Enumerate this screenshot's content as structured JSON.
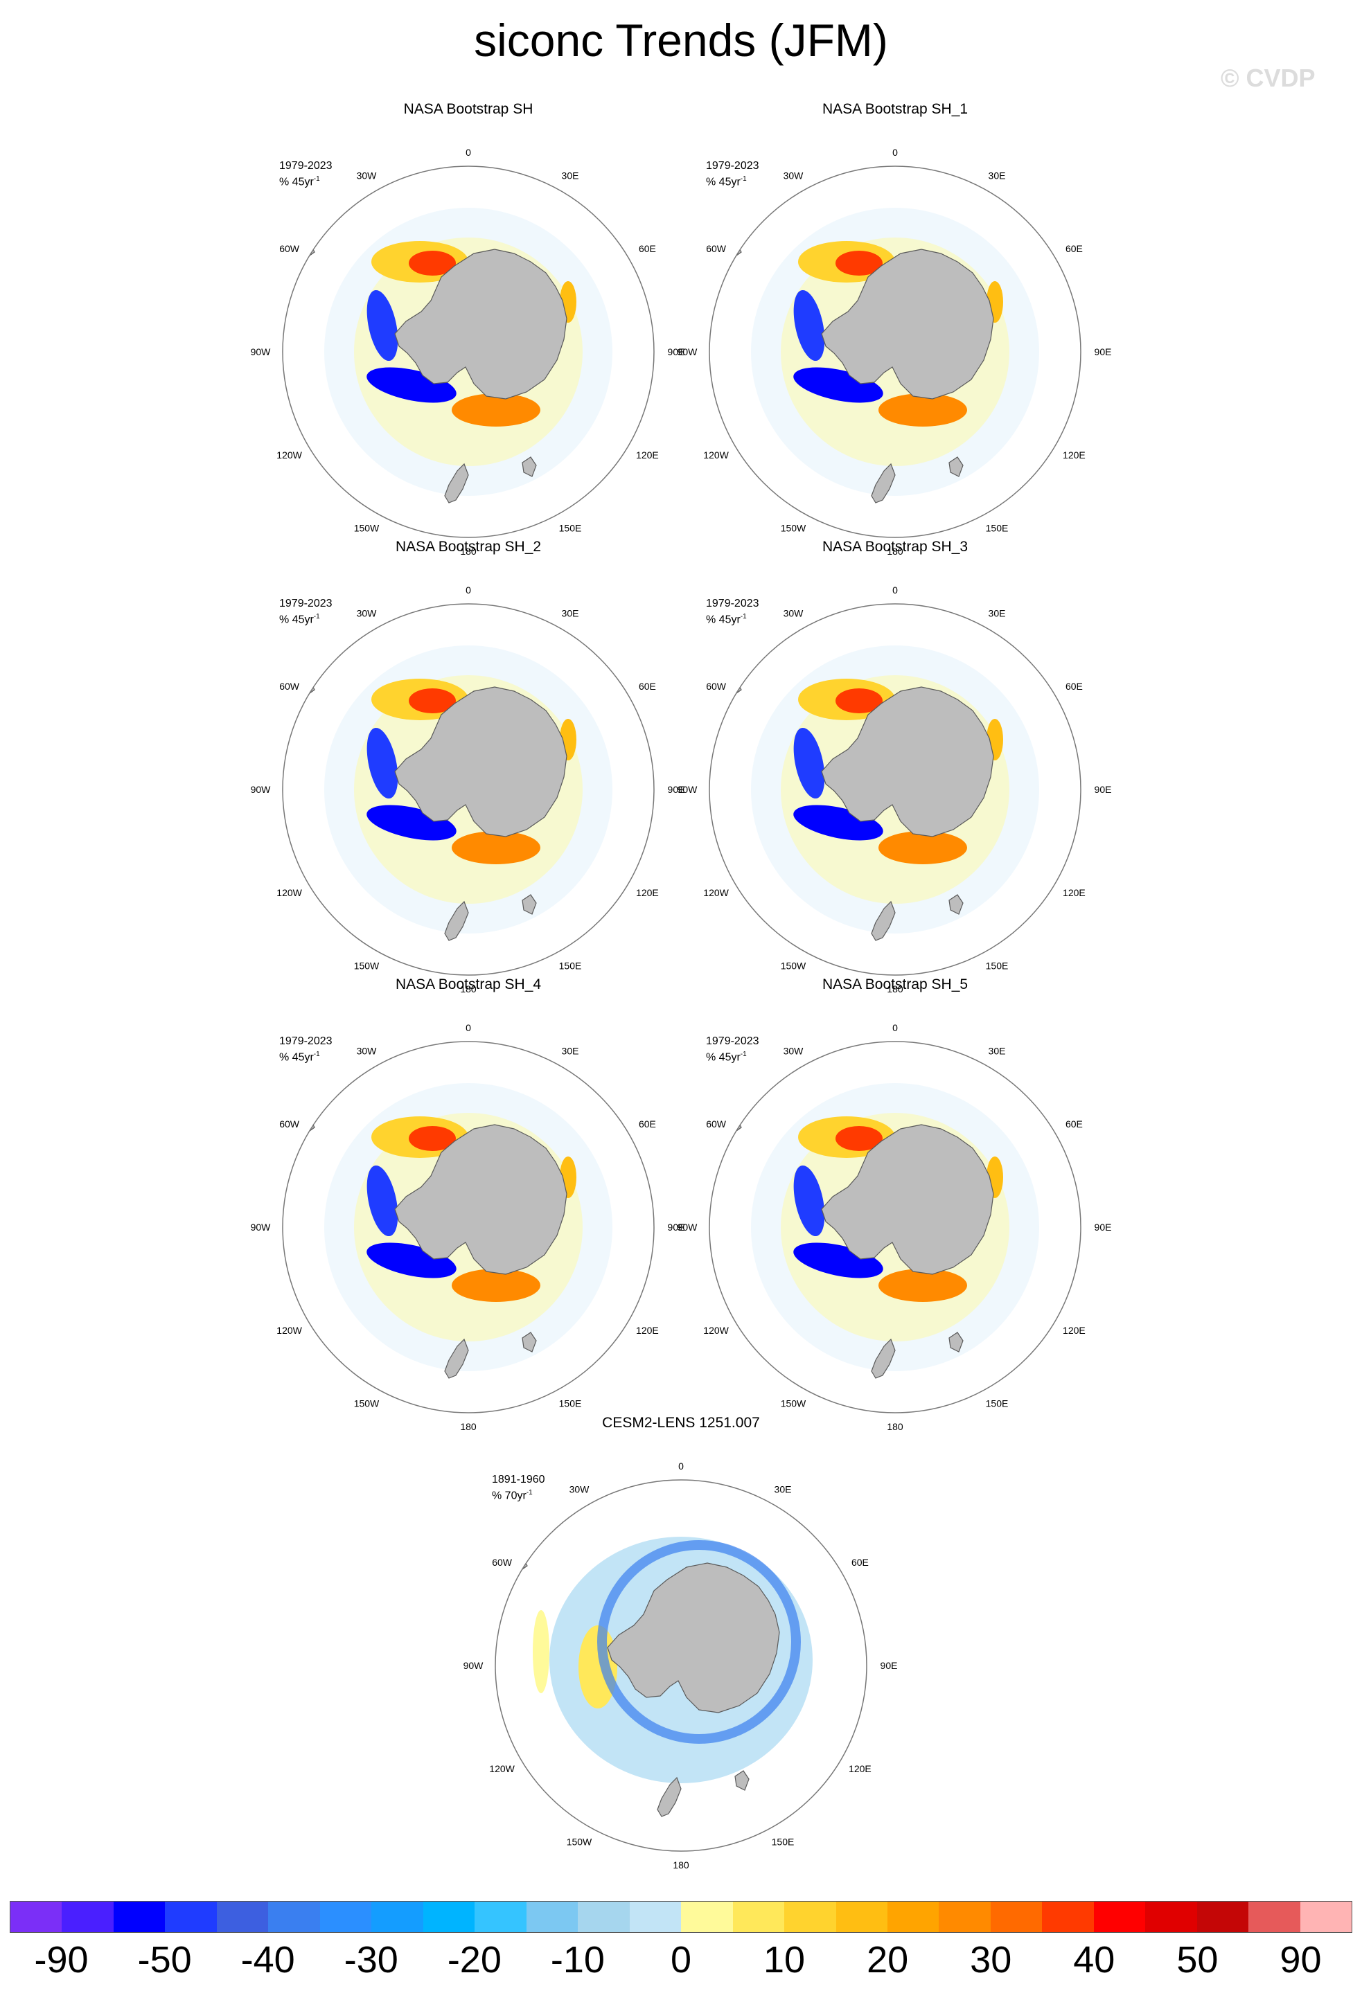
{
  "figure": {
    "title": "siconc Trends (JFM)",
    "watermark": "© CVDP"
  },
  "longitude_labels": [
    "0",
    "30E",
    "60E",
    "90E",
    "120E",
    "150E",
    "180",
    "150W",
    "120W",
    "90W",
    "60W",
    "30W"
  ],
  "panels": [
    {
      "title": "NASA Bootstrap SH",
      "period": "1979-2023",
      "unit_text": "% 45yr",
      "unit_sup": "-1",
      "source": "obs"
    },
    {
      "title": "NASA Bootstrap SH_1",
      "period": "1979-2023",
      "unit_text": "% 45yr",
      "unit_sup": "-1",
      "source": "obs"
    },
    {
      "title": "NASA Bootstrap SH_2",
      "period": "1979-2023",
      "unit_text": "% 45yr",
      "unit_sup": "-1",
      "source": "obs"
    },
    {
      "title": "NASA Bootstrap SH_3",
      "period": "1979-2023",
      "unit_text": "% 45yr",
      "unit_sup": "-1",
      "source": "obs"
    },
    {
      "title": "NASA Bootstrap SH_4",
      "period": "1979-2023",
      "unit_text": "% 45yr",
      "unit_sup": "-1",
      "source": "obs"
    },
    {
      "title": "NASA Bootstrap SH_5",
      "period": "1979-2023",
      "unit_text": "% 45yr",
      "unit_sup": "-1",
      "source": "obs"
    },
    {
      "title": "CESM2-LENS 1251.007",
      "period": "1891-1960",
      "unit_text": "% 70yr",
      "unit_sup": "-1",
      "source": "model"
    }
  ],
  "colorbar": {
    "colors": [
      "#7b2ff7",
      "#4a1fff",
      "#0000ff",
      "#1f3cff",
      "#3d5fe0",
      "#3a7ff0",
      "#2b8fff",
      "#149dff",
      "#00b4ff",
      "#35c4ff",
      "#7cc8f2",
      "#a6d6ee",
      "#c2e4f6",
      "#fffa9a",
      "#ffe85a",
      "#ffd32e",
      "#ffbe12",
      "#ffa400",
      "#ff8a00",
      "#ff6a00",
      "#ff3a00",
      "#ff0000",
      "#e00000",
      "#c40606",
      "#e65a5a",
      "#ffb4b4"
    ],
    "labels": [
      "-90",
      "-50",
      "-40",
      "-30",
      "-20",
      "-10",
      "0",
      "10",
      "20",
      "30",
      "40",
      "50",
      "90"
    ]
  }
}
